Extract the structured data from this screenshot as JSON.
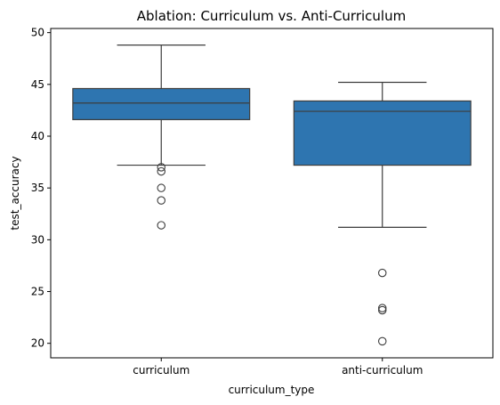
{
  "chart_data": {
    "type": "box",
    "title": "Ablation: Curriculum vs. Anti-Curriculum",
    "xlabel": "curriculum_type",
    "ylabel": "test_accuracy",
    "ylim": [
      18.6,
      50.4
    ],
    "yticks": [
      20,
      25,
      30,
      35,
      40,
      45,
      50
    ],
    "grid": false,
    "box_color": "#2e75b0",
    "line_color": "#3d3d3d",
    "categories": [
      "curriculum",
      "anti-curriculum"
    ],
    "boxes": [
      {
        "category": "curriculum",
        "whisker_low": 37.2,
        "q1": 41.6,
        "median": 43.2,
        "q3": 44.6,
        "whisker_high": 48.8,
        "outliers": [
          37.0,
          36.6,
          35.0,
          33.8,
          31.4
        ]
      },
      {
        "category": "anti-curriculum",
        "whisker_low": 31.2,
        "q1": 37.2,
        "median": 42.4,
        "q3": 43.4,
        "whisker_high": 45.2,
        "outliers": [
          26.8,
          23.4,
          23.2,
          20.2
        ]
      }
    ]
  }
}
